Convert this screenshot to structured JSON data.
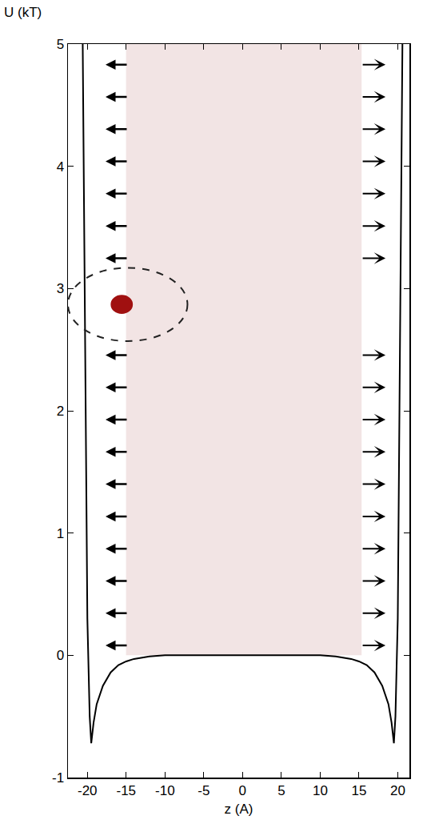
{
  "chart_data": {
    "type": "line",
    "x_label": "z (A)",
    "y_label": "U (kT)",
    "x": [
      -20.6,
      -20.3,
      -20.0,
      -19.7,
      -19.5,
      -19.2,
      -18.8,
      -18,
      -17,
      -16,
      -15,
      -14,
      -12,
      -10,
      -5,
      0,
      5,
      10,
      12,
      14,
      15,
      16,
      17,
      18,
      18.8,
      19.2,
      19.5,
      19.7,
      20.0,
      20.3,
      20.6
    ],
    "values": [
      5,
      2.5,
      0.3,
      -0.5,
      -0.72,
      -0.55,
      -0.4,
      -0.25,
      -0.14,
      -0.08,
      -0.05,
      -0.03,
      -0.01,
      0,
      0,
      0,
      0,
      0,
      -0.01,
      -0.03,
      -0.05,
      -0.08,
      -0.14,
      -0.25,
      -0.4,
      -0.55,
      -0.72,
      -0.5,
      0.3,
      2.5,
      5
    ],
    "color": "#000000",
    "xlim": [
      -22.5,
      21.5
    ],
    "ylim": [
      -1,
      5
    ],
    "xticks": [
      -20,
      -15,
      -10,
      -5,
      0,
      5,
      10,
      15,
      20
    ],
    "yticks": [
      -1,
      0,
      1,
      2,
      3,
      4,
      5
    ],
    "grid": false
  }
}
